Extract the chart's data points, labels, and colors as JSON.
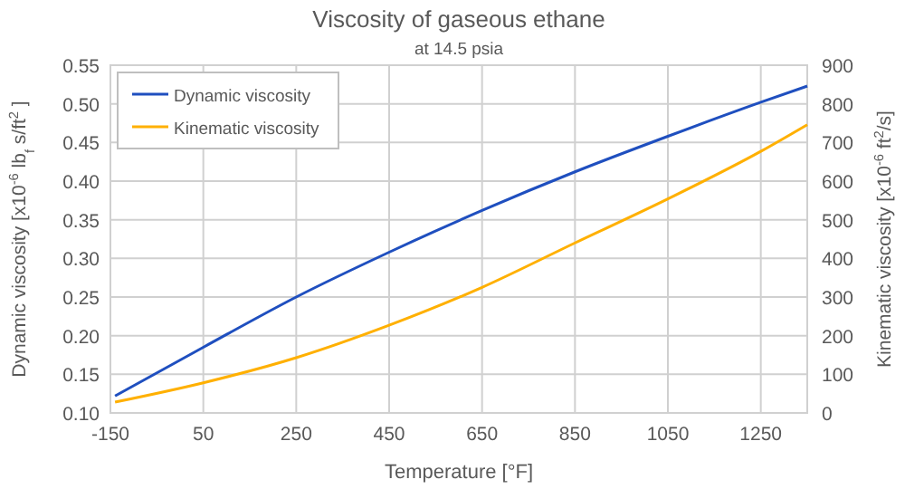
{
  "chart_data": {
    "type": "line",
    "title": "Viscosity of gaseous ethane",
    "subtitle": "at 14.5 psia",
    "xlabel": "Temperature  [°F]",
    "ylabel": "Dynamic viscosity [x10$^{-6}$ lb$_{f}$ s/ft$^{2}$ ]",
    "y2label": "Kinematic viscosity [x10$^{-6}$ ft$^{2}$/s]",
    "x": [
      -140,
      50,
      250,
      450,
      650,
      850,
      1050,
      1250,
      1350
    ],
    "series": [
      {
        "name": "Dynamic viscosity",
        "color": "#1f4fbf",
        "values": [
          0.122,
          0.185,
          0.25,
          0.308,
          0.362,
          0.412,
          0.458,
          0.502,
          0.523
        ]
      },
      {
        "name": "Kinematic viscosity",
        "color": "#ffb000",
        "axis": "y2",
        "values": [
          28,
          78,
          143,
          227,
          325,
          440,
          554,
          677,
          746
        ]
      }
    ],
    "xlim": [
      -150,
      1350
    ],
    "xticks": [
      -150,
      50,
      250,
      450,
      650,
      850,
      1050,
      1250
    ],
    "ylim": [
      0.1,
      0.55
    ],
    "yticks": [
      {
        "value": 0.1,
        "label": "0.10"
      },
      {
        "value": 0.15,
        "label": "0.15"
      },
      {
        "value": 0.2,
        "label": "0.20"
      },
      {
        "value": 0.25,
        "label": "0.25"
      },
      {
        "value": 0.3,
        "label": "0.30"
      },
      {
        "value": 0.35,
        "label": "0.35"
      },
      {
        "value": 0.4,
        "label": "0.40"
      },
      {
        "value": 0.45,
        "label": "0.45"
      },
      {
        "value": 0.5,
        "label": "0.50"
      },
      {
        "value": 0.55,
        "label": "0.55"
      }
    ],
    "y2lim": [
      0,
      900
    ],
    "y2ticks": [
      0,
      100,
      200,
      300,
      400,
      500,
      600,
      700,
      800,
      900
    ],
    "grid": true,
    "legend": "top left"
  }
}
